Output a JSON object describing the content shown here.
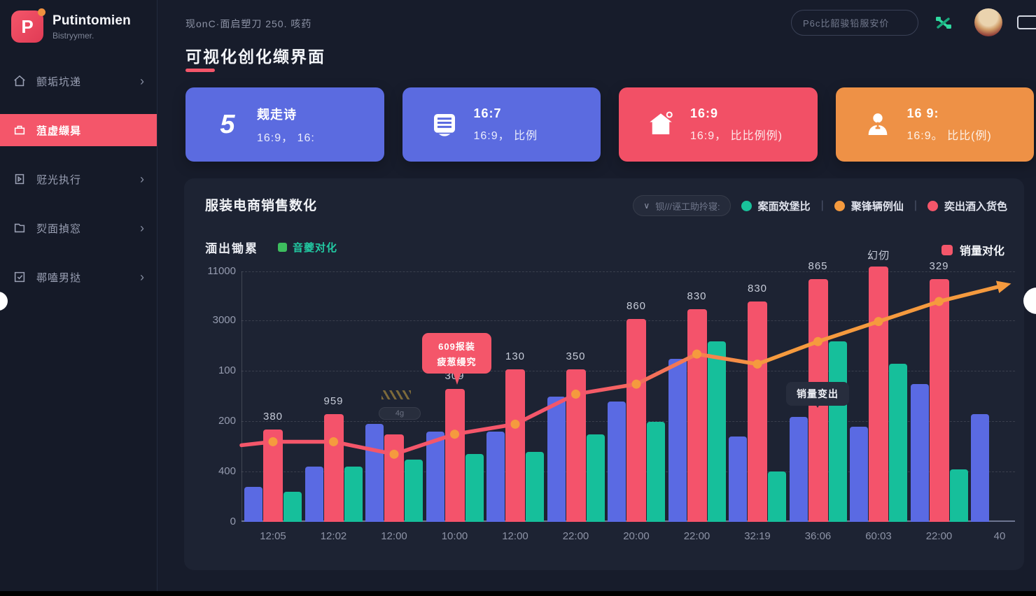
{
  "brand": {
    "name": "Putintomien",
    "subtitle": "Bistryymer."
  },
  "topbar": {
    "breadcrumb": "现onC·面启塑刀 250.  咳药",
    "search_placeholder": "P6c比韶骏铅服安价",
    "page_title": "可视化创化缬界面"
  },
  "sidebar": {
    "items": [
      {
        "label": "颤垢坑递",
        "icon": "home",
        "active": false,
        "chevron": true
      },
      {
        "label": "菹虚缬曻",
        "icon": "store",
        "active": true,
        "chevron": false
      },
      {
        "label": "觃光执行",
        "icon": "play",
        "active": false,
        "chevron": true
      },
      {
        "label": "烮面揁窓",
        "icon": "folder",
        "active": false,
        "chevron": true
      },
      {
        "label": "鄩嗑男挞",
        "icon": "check",
        "active": false,
        "chevron": true
      }
    ]
  },
  "cards": [
    {
      "title": "觌走诗",
      "subtitle": "16:9，  16:",
      "color": "#5b6be0",
      "icon": "hook"
    },
    {
      "title": "16:7",
      "subtitle": "16:9， 比例",
      "color": "#5b6be0",
      "icon": "list"
    },
    {
      "title": "16:9",
      "subtitle": "16:9， 比比例例)",
      "color": "#f25066",
      "icon": "house"
    },
    {
      "title": "16 9:",
      "subtitle": "16:9。 比比(例)",
      "color": "#ee9146",
      "icon": "person"
    }
  ],
  "chart": {
    "title": "服装电商销售数化",
    "dropdown_label": "钡///诬工助拎寝:",
    "legend": [
      {
        "color": "#19c29b",
        "label": "案面效堡比"
      },
      {
        "color": "#f59a3e",
        "label": "聚锋辆例仙"
      },
      {
        "color": "#f4566a",
        "label": "奕出酒入货色"
      }
    ],
    "sub_legend": {
      "text": "湎出锄累",
      "dot_color": "#3dbd5e",
      "dot_label": "音夔对化"
    },
    "series_legend": {
      "color": "#f4566a",
      "label": "销量对化"
    },
    "tooltip_red": {
      "line1": "609报装",
      "line2": "疲葱缦究"
    },
    "tooltip_dark": "销量变出",
    "faint_pill": "4g"
  },
  "chart_data": {
    "type": "bar+line",
    "title": "服装电商销售数化",
    "categories": [
      "12:05",
      "12:02",
      "12:00",
      "10:00",
      "12:00",
      "22:00",
      "20:00",
      "22:00",
      "32:19",
      "36:06",
      "60:03",
      "22:00",
      "40"
    ],
    "y_ticks": [
      "11000",
      "3000",
      "100",
      "200",
      "400",
      "0"
    ],
    "bar_value_labels": [
      "380",
      "959",
      "",
      "309",
      "130",
      "350",
      "860",
      "830",
      "830",
      "865",
      "幻仞",
      "329",
      ""
    ],
    "value_scale": "percent-of-plot-height",
    "grid": "dashed-horizontal",
    "legend_position": "top-right",
    "series": [
      {
        "name": "blue-bars",
        "color": "#5a6ae3",
        "values": [
          14,
          22,
          39,
          36,
          36,
          50,
          48,
          65,
          34,
          42,
          38,
          55,
          43
        ]
      },
      {
        "name": "red-bars",
        "color": "#f4536b",
        "values": [
          37,
          43,
          35,
          53,
          61,
          61,
          81,
          85,
          88,
          97,
          102,
          97,
          0
        ]
      },
      {
        "name": "green-bars",
        "color": "#16bf9b",
        "values": [
          12,
          22,
          25,
          27,
          28,
          35,
          40,
          72,
          20,
          72,
          63,
          21,
          0
        ]
      },
      {
        "name": "trend-line",
        "color": "#f59a3e",
        "color_start": "#f4566a",
        "values": [
          32,
          32,
          27,
          35,
          39,
          51,
          55,
          67,
          63,
          72,
          80,
          88,
          94
        ]
      }
    ]
  }
}
